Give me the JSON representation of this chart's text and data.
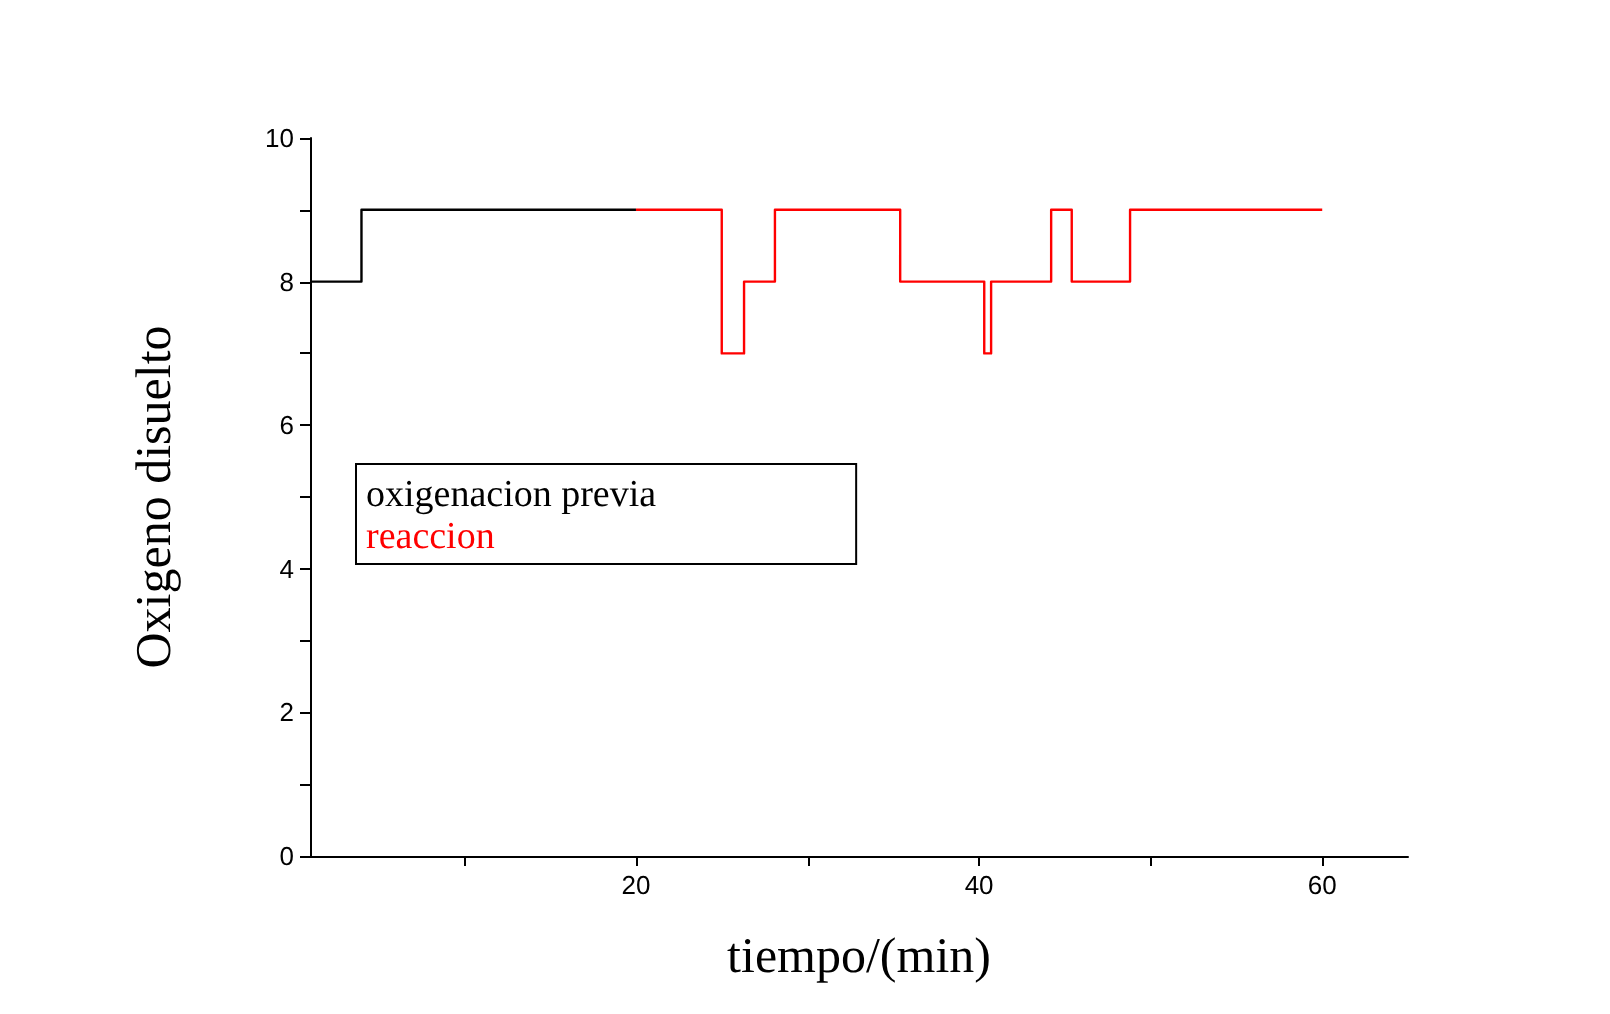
{
  "chart_data": {
    "type": "step",
    "xlabel": "tiempo/(min)",
    "ylabel": "Oxigeno disuelto",
    "xlim": [
      1,
      65
    ],
    "xticks": [
      {
        "value": 10,
        "label": null
      },
      20,
      {
        "value": 30,
        "label": null
      },
      40,
      {
        "value": 50,
        "label": null
      },
      60
    ],
    "ylim": [
      0,
      10
    ],
    "yticks": [
      0,
      {
        "value": 1,
        "label": null
      },
      2,
      {
        "value": 3,
        "label": null
      },
      4,
      {
        "value": 5,
        "label": null
      },
      6,
      {
        "value": 7,
        "label": null
      },
      8,
      {
        "value": 9,
        "label": null
      },
      10
    ],
    "grid": false,
    "legend": "left",
    "marker": "none",
    "line_style": "solid",
    "series": [
      {
        "name": "oxigenacion previa",
        "color": "#000000",
        "x": [
          1,
          4,
          20
        ],
        "values": [
          8,
          9,
          9
        ]
      },
      {
        "name": "reaccion",
        "color": "#ff0000",
        "x": [
          20,
          25,
          26.3,
          28.1,
          35.4,
          40.3,
          40.7,
          44.2,
          45.4,
          48.8,
          60
        ],
        "values": [
          9,
          7,
          8,
          9,
          8,
          7,
          8,
          9,
          8,
          9,
          9
        ]
      }
    ]
  }
}
